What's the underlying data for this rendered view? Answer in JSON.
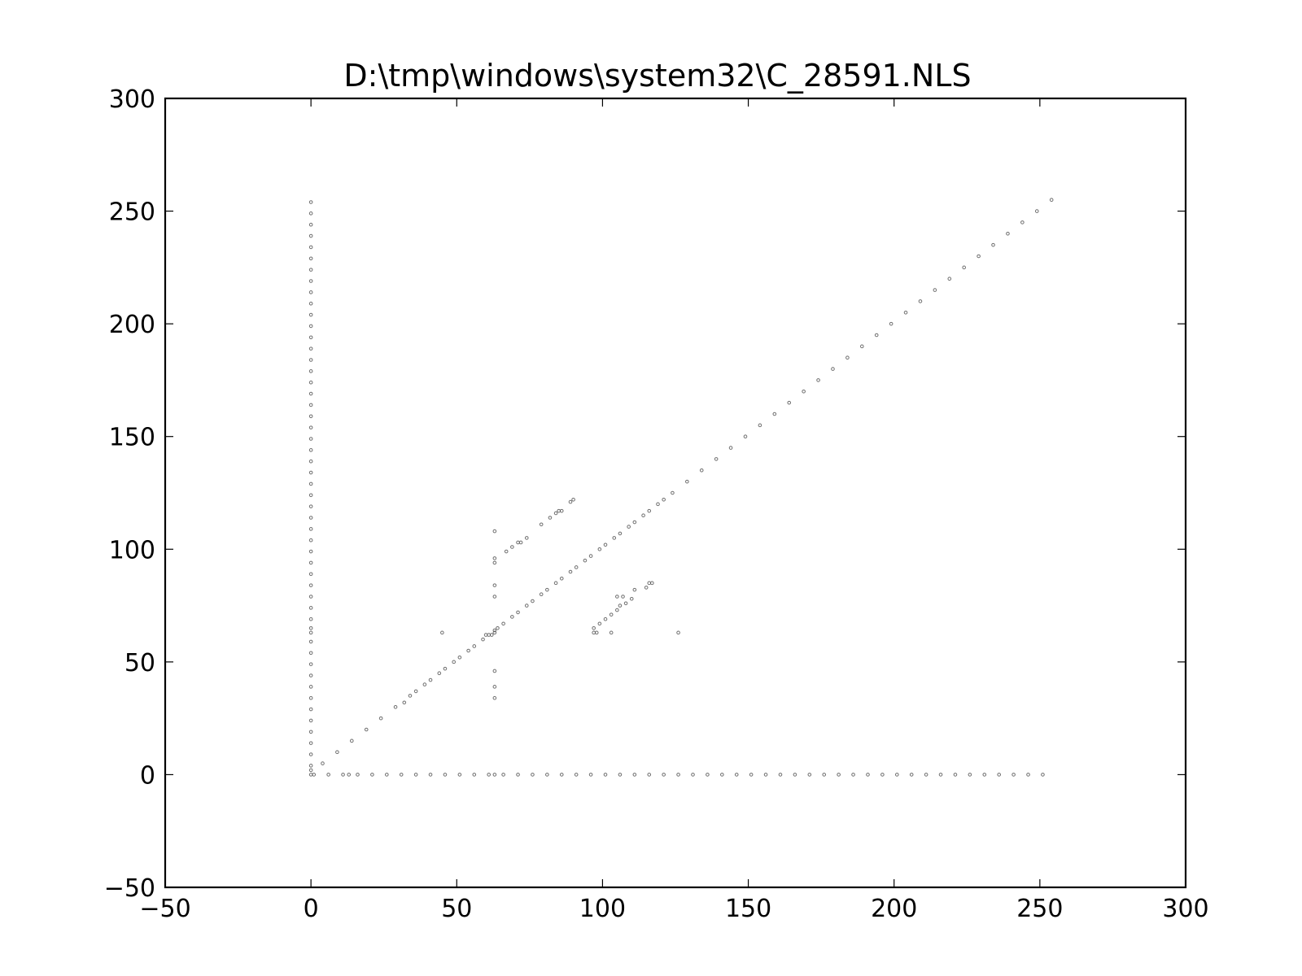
{
  "chart_data": {
    "type": "scatter",
    "title": "D:\\tmp\\windows\\system32\\C_28591.NLS",
    "xlabel": "",
    "ylabel": "",
    "xlim": [
      -50,
      300
    ],
    "ylim": [
      -50,
      300
    ],
    "xticks": [
      -50,
      0,
      50,
      100,
      150,
      200,
      250,
      300
    ],
    "yticks": [
      -50,
      0,
      50,
      100,
      150,
      200,
      250,
      300
    ],
    "xtick_labels": [
      "−50",
      "0",
      "50",
      "100",
      "150",
      "200",
      "250",
      "300"
    ],
    "ytick_labels": [
      "−50",
      "0",
      "50",
      "100",
      "150",
      "200",
      "250",
      "300"
    ],
    "grid": false,
    "marker_color": "#555555",
    "points": [
      [
        0,
        0
      ],
      [
        0,
        2
      ],
      [
        0,
        4
      ],
      [
        0,
        9
      ],
      [
        0,
        14
      ],
      [
        0,
        19
      ],
      [
        0,
        24
      ],
      [
        0,
        29
      ],
      [
        0,
        34
      ],
      [
        0,
        39
      ],
      [
        0,
        44
      ],
      [
        0,
        49
      ],
      [
        0,
        54
      ],
      [
        0,
        59
      ],
      [
        0,
        63
      ],
      [
        0,
        65
      ],
      [
        0,
        69
      ],
      [
        0,
        74
      ],
      [
        0,
        79
      ],
      [
        0,
        84
      ],
      [
        0,
        89
      ],
      [
        0,
        94
      ],
      [
        0,
        99
      ],
      [
        0,
        104
      ],
      [
        0,
        109
      ],
      [
        0,
        114
      ],
      [
        0,
        119
      ],
      [
        0,
        124
      ],
      [
        0,
        129
      ],
      [
        0,
        134
      ],
      [
        0,
        139
      ],
      [
        0,
        144
      ],
      [
        0,
        149
      ],
      [
        0,
        154
      ],
      [
        0,
        159
      ],
      [
        0,
        164
      ],
      [
        0,
        169
      ],
      [
        0,
        174
      ],
      [
        0,
        179
      ],
      [
        0,
        184
      ],
      [
        0,
        189
      ],
      [
        0,
        194
      ],
      [
        0,
        199
      ],
      [
        0,
        204
      ],
      [
        0,
        209
      ],
      [
        0,
        214
      ],
      [
        0,
        219
      ],
      [
        0,
        224
      ],
      [
        0,
        229
      ],
      [
        0,
        234
      ],
      [
        0,
        239
      ],
      [
        0,
        244
      ],
      [
        0,
        249
      ],
      [
        0,
        254
      ],
      [
        1,
        0
      ],
      [
        6,
        0
      ],
      [
        11,
        0
      ],
      [
        13,
        0
      ],
      [
        16,
        0
      ],
      [
        21,
        0
      ],
      [
        26,
        0
      ],
      [
        31,
        0
      ],
      [
        36,
        0
      ],
      [
        41,
        0
      ],
      [
        46,
        0
      ],
      [
        51,
        0
      ],
      [
        56,
        0
      ],
      [
        61,
        0
      ],
      [
        63,
        0
      ],
      [
        66,
        0
      ],
      [
        71,
        0
      ],
      [
        76,
        0
      ],
      [
        81,
        0
      ],
      [
        86,
        0
      ],
      [
        91,
        0
      ],
      [
        96,
        0
      ],
      [
        101,
        0
      ],
      [
        106,
        0
      ],
      [
        111,
        0
      ],
      [
        116,
        0
      ],
      [
        121,
        0
      ],
      [
        126,
        0
      ],
      [
        131,
        0
      ],
      [
        136,
        0
      ],
      [
        141,
        0
      ],
      [
        146,
        0
      ],
      [
        151,
        0
      ],
      [
        156,
        0
      ],
      [
        161,
        0
      ],
      [
        166,
        0
      ],
      [
        171,
        0
      ],
      [
        176,
        0
      ],
      [
        181,
        0
      ],
      [
        186,
        0
      ],
      [
        191,
        0
      ],
      [
        196,
        0
      ],
      [
        201,
        0
      ],
      [
        206,
        0
      ],
      [
        211,
        0
      ],
      [
        216,
        0
      ],
      [
        221,
        0
      ],
      [
        226,
        0
      ],
      [
        231,
        0
      ],
      [
        236,
        0
      ],
      [
        241,
        0
      ],
      [
        246,
        0
      ],
      [
        251,
        0
      ],
      [
        4,
        5
      ],
      [
        9,
        10
      ],
      [
        14,
        15
      ],
      [
        19,
        20
      ],
      [
        24,
        25
      ],
      [
        29,
        30
      ],
      [
        32,
        32
      ],
      [
        34,
        35
      ],
      [
        36,
        37
      ],
      [
        39,
        40
      ],
      [
        41,
        42
      ],
      [
        44,
        45
      ],
      [
        46,
        47
      ],
      [
        49,
        50
      ],
      [
        51,
        52
      ],
      [
        54,
        55
      ],
      [
        56,
        57
      ],
      [
        59,
        60
      ],
      [
        61,
        62
      ],
      [
        64,
        65
      ],
      [
        66,
        67
      ],
      [
        69,
        70
      ],
      [
        71,
        72
      ],
      [
        74,
        75
      ],
      [
        76,
        77
      ],
      [
        79,
        80
      ],
      [
        81,
        82
      ],
      [
        84,
        85
      ],
      [
        86,
        87
      ],
      [
        89,
        90
      ],
      [
        91,
        92
      ],
      [
        94,
        95
      ],
      [
        96,
        97
      ],
      [
        99,
        100
      ],
      [
        101,
        102
      ],
      [
        104,
        105
      ],
      [
        106,
        107
      ],
      [
        109,
        110
      ],
      [
        111,
        112
      ],
      [
        114,
        115
      ],
      [
        116,
        117
      ],
      [
        119,
        120
      ],
      [
        121,
        122
      ],
      [
        124,
        125
      ],
      [
        129,
        130
      ],
      [
        134,
        135
      ],
      [
        139,
        140
      ],
      [
        144,
        145
      ],
      [
        149,
        150
      ],
      [
        154,
        155
      ],
      [
        159,
        160
      ],
      [
        164,
        165
      ],
      [
        169,
        170
      ],
      [
        174,
        175
      ],
      [
        179,
        180
      ],
      [
        184,
        185
      ],
      [
        189,
        190
      ],
      [
        194,
        195
      ],
      [
        199,
        200
      ],
      [
        204,
        205
      ],
      [
        209,
        210
      ],
      [
        214,
        215
      ],
      [
        219,
        220
      ],
      [
        224,
        225
      ],
      [
        229,
        230
      ],
      [
        234,
        235
      ],
      [
        239,
        240
      ],
      [
        244,
        245
      ],
      [
        249,
        250
      ],
      [
        254,
        255
      ],
      [
        63,
        34
      ],
      [
        63,
        39
      ],
      [
        63,
        46
      ],
      [
        63,
        63
      ],
      [
        63,
        64
      ],
      [
        63,
        79
      ],
      [
        63,
        84
      ],
      [
        63,
        94
      ],
      [
        63,
        96
      ],
      [
        63,
        108
      ],
      [
        45,
        63
      ],
      [
        60,
        62
      ],
      [
        62,
        62
      ],
      [
        67,
        99
      ],
      [
        69,
        101
      ],
      [
        71,
        103
      ],
      [
        72,
        103
      ],
      [
        74,
        105
      ],
      [
        79,
        111
      ],
      [
        82,
        114
      ],
      [
        84,
        116
      ],
      [
        85,
        117
      ],
      [
        86,
        117
      ],
      [
        89,
        121
      ],
      [
        90,
        122
      ],
      [
        97,
        63
      ],
      [
        97,
        65
      ],
      [
        98,
        63
      ],
      [
        99,
        67
      ],
      [
        101,
        69
      ],
      [
        103,
        63
      ],
      [
        103,
        71
      ],
      [
        105,
        73
      ],
      [
        105,
        79
      ],
      [
        106,
        75
      ],
      [
        107,
        79
      ],
      [
        108,
        76
      ],
      [
        110,
        78
      ],
      [
        111,
        82
      ],
      [
        115,
        83
      ],
      [
        116,
        85
      ],
      [
        117,
        85
      ],
      [
        126,
        63
      ]
    ]
  }
}
